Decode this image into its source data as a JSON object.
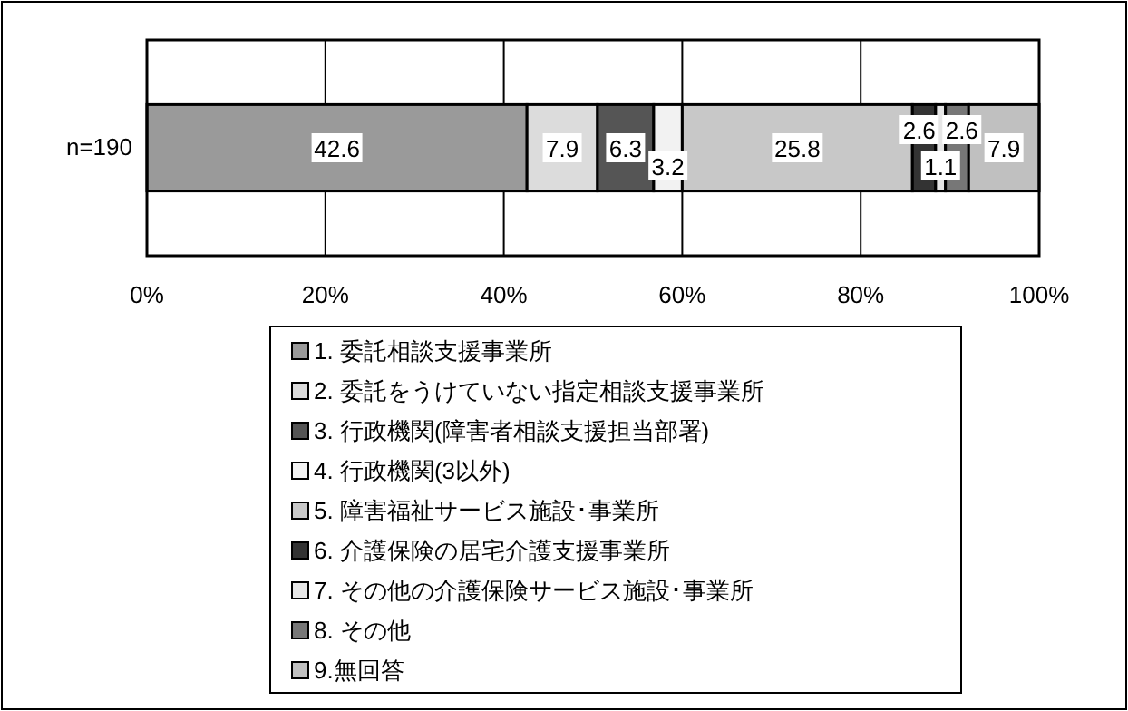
{
  "chart_data": {
    "type": "bar",
    "orientation": "horizontal",
    "stacked": true,
    "categories": [
      "n=190"
    ],
    "series": [
      {
        "name": "1. 委託相談支援事業所",
        "color": "#9a9a9a",
        "values": [
          42.6
        ]
      },
      {
        "name": "2. 委託をうけていない指定相談支援事業所",
        "color": "#dcdcdc",
        "values": [
          7.9
        ]
      },
      {
        "name": "3. 行政機関(障害者相談支援担当部署)",
        "color": "#555555",
        "values": [
          6.3
        ]
      },
      {
        "name": "4. 行政機関(3以外)",
        "color": "#f2f2f2",
        "values": [
          3.2
        ]
      },
      {
        "name": "5. 障害福祉サービス施設･事業所",
        "color": "#c8c8c8",
        "values": [
          25.8
        ]
      },
      {
        "name": "6. 介護保険の居宅介護支援事業所",
        "color": "#333333",
        "values": [
          2.6
        ]
      },
      {
        "name": "7. その他の介護保険サービス施設･事業所",
        "color": "#e6e6e6",
        "values": [
          1.1
        ]
      },
      {
        "name": "8. その他",
        "color": "#777777",
        "values": [
          2.6
        ]
      },
      {
        "name": "9.無回答",
        "color": "#c0c0c0",
        "values": [
          7.9
        ]
      }
    ],
    "xlim": [
      0,
      100
    ],
    "xticks": [
      {
        "value": 0,
        "label": "0%"
      },
      {
        "value": 20,
        "label": "20%"
      },
      {
        "value": 40,
        "label": "40%"
      },
      {
        "value": 60,
        "label": "60%"
      },
      {
        "value": 80,
        "label": "80%"
      },
      {
        "value": 100,
        "label": "100%"
      }
    ],
    "grid": "x",
    "data_labels": true,
    "legend": "bottom"
  }
}
